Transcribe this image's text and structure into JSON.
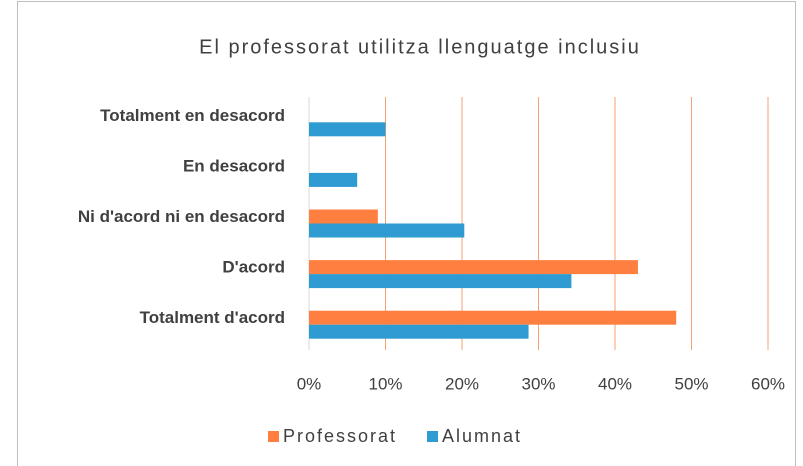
{
  "chart_data": {
    "type": "bar",
    "orientation": "horizontal",
    "title": "El professorat utilitza llenguatge inclusiu",
    "categories": [
      "Totalment en desacord",
      "En desacord",
      "Ni d'acord ni en desacord",
      "D'acord",
      "Totalment d'acord"
    ],
    "series": [
      {
        "name": "Professorat",
        "color": "#ff7f41",
        "values": [
          0,
          0,
          9,
          43,
          48
        ]
      },
      {
        "name": "Alumnat",
        "color": "#2e9bd2",
        "values": [
          10,
          6.3,
          20.3,
          34.3,
          28.7
        ]
      }
    ],
    "xlim": [
      0,
      60
    ],
    "xticks": [
      {
        "value": 0,
        "label": "0%"
      },
      {
        "value": 10,
        "label": "10%"
      },
      {
        "value": 20,
        "label": "20%"
      },
      {
        "value": 30,
        "label": "30%"
      },
      {
        "value": 40,
        "label": "40%"
      },
      {
        "value": 50,
        "label": "50%"
      },
      {
        "value": 60,
        "label": "60%"
      }
    ],
    "grid": true,
    "grid_color": "#f4a070",
    "legend": "bottom"
  }
}
